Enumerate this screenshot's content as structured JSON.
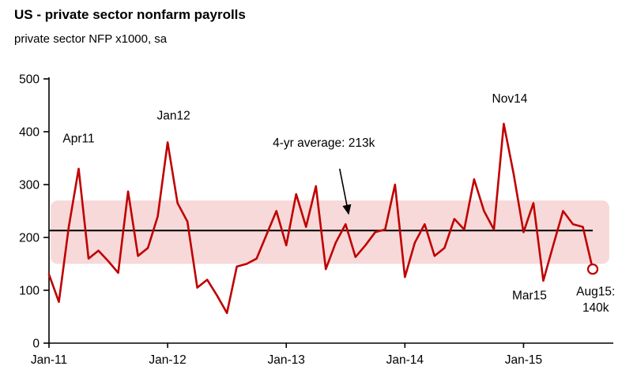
{
  "title": "US - private sector nonfarm payrolls",
  "subtitle": "private sector NFP x1000, sa",
  "chart_data": {
    "type": "line",
    "title": "US - private sector nonfarm payrolls",
    "subtitle": "private sector NFP x1000, sa",
    "xlabel": "",
    "ylabel": "private sector NFP x1000, sa",
    "ylim": [
      0,
      500
    ],
    "y_ticks": [
      0,
      100,
      200,
      300,
      400,
      500
    ],
    "x_tick_labels": [
      "Jan-11",
      "Jan-12",
      "Jan-13",
      "Jan-14",
      "Jan-15"
    ],
    "x_tick_month_indices": [
      0,
      12,
      24,
      36,
      48
    ],
    "grid": false,
    "legend": "none",
    "categories": [
      "Jan-11",
      "Feb-11",
      "Mar-11",
      "Apr-11",
      "May-11",
      "Jun-11",
      "Jul-11",
      "Aug-11",
      "Sep-11",
      "Oct-11",
      "Nov-11",
      "Dec-11",
      "Jan-12",
      "Feb-12",
      "Mar-12",
      "Apr-12",
      "May-12",
      "Jun-12",
      "Jul-12",
      "Aug-12",
      "Sep-12",
      "Oct-12",
      "Nov-12",
      "Dec-12",
      "Jan-13",
      "Feb-13",
      "Mar-13",
      "Apr-13",
      "May-13",
      "Jun-13",
      "Jul-13",
      "Aug-13",
      "Sep-13",
      "Oct-13",
      "Nov-13",
      "Dec-13",
      "Jan-14",
      "Feb-14",
      "Mar-14",
      "Apr-14",
      "May-14",
      "Jun-14",
      "Jul-14",
      "Aug-14",
      "Sep-14",
      "Oct-14",
      "Nov-14",
      "Dec-14",
      "Jan-15",
      "Feb-15",
      "Mar-15",
      "Apr-15",
      "May-15",
      "Jun-15",
      "Jul-15",
      "Aug-15"
    ],
    "series": [
      {
        "name": "private sector NFP monthly change (x1000, sa)",
        "color": "#c00000",
        "values": [
          130,
          78,
          220,
          330,
          160,
          175,
          155,
          133,
          287,
          165,
          180,
          240,
          380,
          265,
          230,
          105,
          120,
          90,
          57,
          145,
          150,
          160,
          205,
          250,
          185,
          282,
          220,
          297,
          140,
          190,
          225,
          163,
          185,
          210,
          215,
          300,
          125,
          190,
          225,
          165,
          180,
          235,
          215,
          310,
          250,
          215,
          415,
          320,
          210,
          265,
          118,
          185,
          250,
          225,
          220,
          140
        ]
      }
    ],
    "average_line": {
      "value": 213,
      "label": "4-yr average: 213k",
      "color": "#000000"
    },
    "band": {
      "y_from": 150,
      "y_to": 270,
      "color": "#f7d9d9"
    },
    "annotations": [
      {
        "id": "apr11",
        "text": "Apr11",
        "x_month": 3.0,
        "y_value": 380
      },
      {
        "id": "jan12",
        "text": "Jan12",
        "x_month": 12.6,
        "y_value": 423
      },
      {
        "id": "avg",
        "text": "4-yr average: 213k",
        "x_month": 27.8,
        "y_value": 372
      },
      {
        "id": "nov14",
        "text": "Nov14",
        "x_month": 46.6,
        "y_value": 455
      },
      {
        "id": "mar15",
        "text": "Mar15",
        "x_month": 48.6,
        "y_value": 83
      },
      {
        "id": "aug15a",
        "text": "Aug15:",
        "x_month": 55.3,
        "y_value": 90
      },
      {
        "id": "aug15b",
        "text": "140k",
        "x_month": 55.3,
        "y_value": 60
      }
    ],
    "arrow": {
      "from_month": 29.4,
      "from_value": 330,
      "to_month": 30.3,
      "to_value": 245,
      "color": "#000000"
    },
    "endpoint_marker": {
      "x_month": 55,
      "y_value": 140,
      "style": "open-circle",
      "color": "#c00000"
    },
    "axis_color": "#000000"
  }
}
